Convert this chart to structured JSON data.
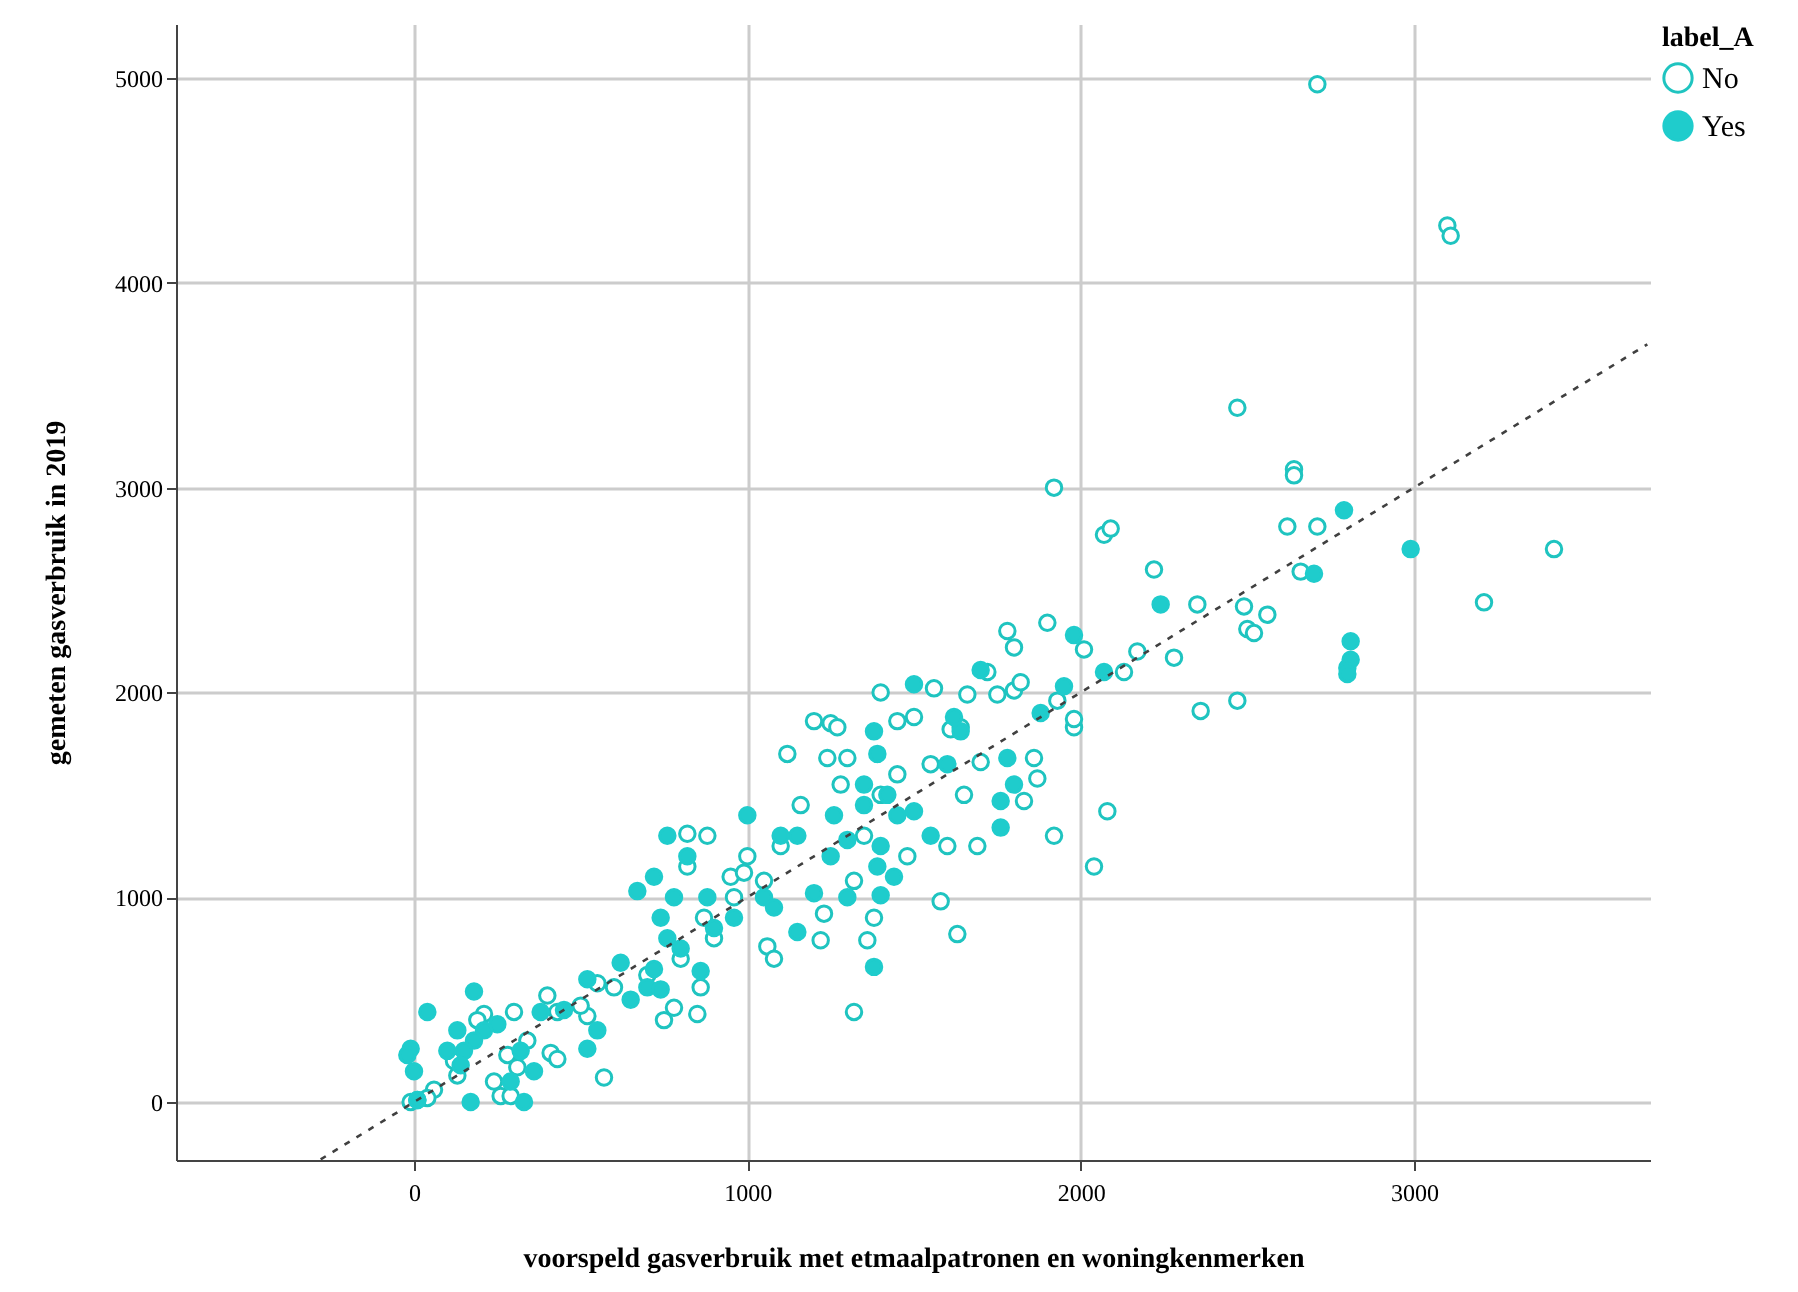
{
  "chart_data": {
    "type": "scatter",
    "xlabel": "voorspeld gasverbruik met etmaalpatronen en woningkenmerken",
    "ylabel": "gemeten gasverbruik in 2019",
    "legend_title": "label_A",
    "legend": "top right",
    "grid": true,
    "marker": "circle",
    "line_style": "dashed",
    "xlim": [
      -714,
      3708
    ],
    "ylim": [
      -283,
      5264
    ],
    "xticks": [
      0,
      1000,
      2000,
      3000
    ],
    "yticks": [
      0,
      1000,
      2000,
      3000,
      4000,
      5000
    ],
    "series": [
      {
        "name": "No",
        "color": "#1fc4c0",
        "x": [
          2710,
          3100,
          3110,
          2470,
          1920,
          2640,
          2640,
          2070,
          2090,
          2620,
          2710,
          2220,
          2660,
          3420,
          3210,
          2350,
          2490,
          2500,
          2520,
          2560,
          2170,
          2130,
          2280,
          2360,
          2470,
          2010,
          1900,
          1780,
          1800,
          1980,
          1980,
          1930,
          1920,
          2040,
          2080,
          1860,
          1870,
          1830,
          1690,
          1580,
          1630,
          1320,
          1220,
          1360,
          1380,
          1560,
          1400,
          1200,
          1250,
          1270,
          1120,
          1160,
          1240,
          1300,
          1450,
          1500,
          1610,
          1640,
          1700,
          1650,
          1600,
          1480,
          1350,
          1280,
          1400,
          1100,
          1000,
          950,
          880,
          820,
          870,
          800,
          860,
          780,
          850,
          750,
          820,
          1050,
          1060,
          1080,
          1230,
          1320,
          960,
          990,
          900,
          700,
          600,
          550,
          520,
          500,
          400,
          430,
          410,
          430,
          300,
          340,
          280,
          240,
          260,
          310,
          570,
          290,
          60,
          40,
          -10,
          10,
          210,
          190,
          120,
          130,
          1450,
          1550,
          1750,
          1800,
          1820,
          1720,
          1660
        ],
        "values": [
          4970,
          4280,
          4230,
          3390,
          3000,
          3090,
          3060,
          2770,
          2800,
          2810,
          2810,
          2600,
          2590,
          2700,
          2440,
          2430,
          2420,
          2310,
          2290,
          2380,
          2200,
          2100,
          2170,
          1910,
          1960,
          2210,
          2340,
          2300,
          2220,
          1830,
          1870,
          1960,
          1300,
          1150,
          1420,
          1680,
          1580,
          1470,
          1250,
          980,
          820,
          440,
          790,
          790,
          900,
          2020,
          2000,
          1860,
          1850,
          1830,
          1700,
          1450,
          1680,
          1680,
          1860,
          1880,
          1820,
          1830,
          1660,
          1500,
          1250,
          1200,
          1300,
          1550,
          1500,
          1250,
          1200,
          1100,
          1300,
          1310,
          900,
          700,
          560,
          460,
          430,
          400,
          1150,
          1080,
          760,
          700,
          920,
          1080,
          1000,
          1120,
          800,
          620,
          560,
          580,
          420,
          470,
          520,
          440,
          240,
          210,
          440,
          300,
          230,
          100,
          30,
          170,
          120,
          30,
          60,
          20,
          0,
          10,
          430,
          400,
          200,
          130,
          1600,
          1650,
          1990,
          2010,
          2050,
          2100,
          1990
        ]
      },
      {
        "name": "Yes",
        "color": "#1fcccc",
        "x": [
          2990,
          2790,
          2700,
          2810,
          2810,
          2800,
          2800,
          2240,
          2070,
          1980,
          1950,
          1880,
          1780,
          1800,
          1760,
          1760,
          1500,
          1700,
          1640,
          1380,
          1390,
          1420,
          1450,
          1350,
          1400,
          1390,
          1440,
          1400,
          1380,
          1250,
          1150,
          1100,
          1050,
          1080,
          1000,
          960,
          900,
          880,
          820,
          780,
          760,
          720,
          740,
          760,
          800,
          720,
          700,
          670,
          650,
          620,
          740,
          860,
          1150,
          1300,
          1200,
          550,
          520,
          520,
          450,
          380,
          360,
          330,
          320,
          290,
          250,
          210,
          180,
          180,
          150,
          140,
          130,
          170,
          100,
          40,
          10,
          0,
          -10,
          -20,
          1350,
          1300,
          1550,
          1500,
          1600,
          1620,
          1260
        ],
        "values": [
          2700,
          2890,
          2580,
          2250,
          2160,
          2120,
          2090,
          2430,
          2100,
          2280,
          2030,
          1900,
          1680,
          1550,
          1470,
          1340,
          2040,
          2110,
          1810,
          1810,
          1700,
          1500,
          1400,
          1450,
          1250,
          1150,
          1100,
          1010,
          660,
          1200,
          1300,
          1300,
          1000,
          950,
          1400,
          900,
          850,
          1000,
          1200,
          1000,
          1300,
          1100,
          900,
          800,
          750,
          650,
          560,
          1030,
          500,
          680,
          550,
          640,
          830,
          1000,
          1020,
          350,
          600,
          260,
          450,
          440,
          150,
          0,
          250,
          100,
          380,
          350,
          540,
          300,
          250,
          180,
          350,
          0,
          250,
          440,
          10,
          150,
          260,
          230,
          1550,
          1280,
          1300,
          1420,
          1650,
          1880,
          1400
        ]
      },
      {
        "type": "line",
        "color": "#404040",
        "marker": "none",
        "x": [
          -280,
          3700
        ],
        "values": [
          -280,
          3700
        ]
      }
    ]
  }
}
